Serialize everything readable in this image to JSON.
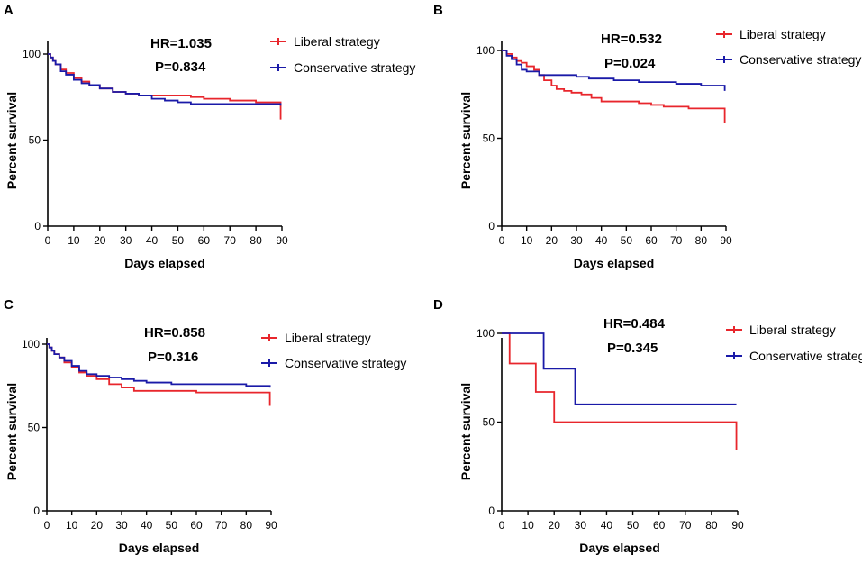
{
  "colors": {
    "liberal": "#e8262c",
    "conservative": "#1a1aa8"
  },
  "chart_data": [
    {
      "type": "line",
      "panel": "A",
      "xlabel": "Days elapsed",
      "ylabel": "Percent survival",
      "xlim": [
        0,
        90
      ],
      "ylim": [
        0,
        105
      ],
      "xticks": [
        "0",
        "10",
        "20",
        "30",
        "40",
        "50",
        "60",
        "70",
        "80",
        "90"
      ],
      "yticks": [
        "0",
        "50",
        "100"
      ],
      "hr_text": "HR=1.035",
      "p_text": "P=0.834",
      "legend": [
        "Liberal strategy",
        "Conservative strategy"
      ],
      "series": [
        {
          "name": "Liberal strategy",
          "color": "liberal",
          "points": [
            [
              0,
              100
            ],
            [
              1,
              98
            ],
            [
              2,
              96
            ],
            [
              3,
              94
            ],
            [
              5,
              91
            ],
            [
              7,
              89
            ],
            [
              10,
              86
            ],
            [
              13,
              84
            ],
            [
              16,
              82
            ],
            [
              20,
              80
            ],
            [
              25,
              78
            ],
            [
              30,
              77
            ],
            [
              35,
              76
            ],
            [
              40,
              76
            ],
            [
              45,
              76
            ],
            [
              50,
              76
            ],
            [
              55,
              75
            ],
            [
              60,
              74
            ],
            [
              70,
              73
            ],
            [
              80,
              72
            ],
            [
              89,
              72
            ],
            [
              89.5,
              62
            ]
          ]
        },
        {
          "name": "Conservative strategy",
          "color": "conservative",
          "points": [
            [
              0,
              100
            ],
            [
              1,
              98
            ],
            [
              2,
              96
            ],
            [
              3,
              94
            ],
            [
              5,
              90
            ],
            [
              7,
              88
            ],
            [
              10,
              85
            ],
            [
              13,
              83
            ],
            [
              16,
              82
            ],
            [
              20,
              80
            ],
            [
              25,
              78
            ],
            [
              30,
              77
            ],
            [
              35,
              76
            ],
            [
              40,
              74
            ],
            [
              45,
              73
            ],
            [
              50,
              72
            ],
            [
              55,
              71
            ],
            [
              60,
              71
            ],
            [
              70,
              71
            ],
            [
              80,
              71
            ],
            [
              89,
              71
            ],
            [
              89.5,
              70
            ]
          ]
        }
      ]
    },
    {
      "type": "line",
      "panel": "B",
      "xlabel": "Days elapsed",
      "ylabel": "Percent survival",
      "xlim": [
        0,
        90
      ],
      "ylim": [
        0,
        105
      ],
      "xticks": [
        "0",
        "10",
        "20",
        "30",
        "40",
        "50",
        "60",
        "70",
        "80",
        "90"
      ],
      "yticks": [
        "0",
        "50",
        "100"
      ],
      "hr_text": "HR=0.532",
      "p_text": "P=0.024",
      "legend": [
        "Liberal strategy",
        "Conservative strategy"
      ],
      "series": [
        {
          "name": "Liberal strategy",
          "color": "liberal",
          "points": [
            [
              0,
              100
            ],
            [
              2,
              98
            ],
            [
              4,
              96
            ],
            [
              6,
              94
            ],
            [
              8,
              93
            ],
            [
              10,
              91
            ],
            [
              13,
              89
            ],
            [
              15,
              86
            ],
            [
              17,
              83
            ],
            [
              20,
              80
            ],
            [
              22,
              78
            ],
            [
              25,
              77
            ],
            [
              28,
              76
            ],
            [
              32,
              75
            ],
            [
              36,
              73
            ],
            [
              40,
              71
            ],
            [
              45,
              71
            ],
            [
              50,
              71
            ],
            [
              55,
              70
            ],
            [
              60,
              69
            ],
            [
              65,
              68
            ],
            [
              70,
              68
            ],
            [
              75,
              67
            ],
            [
              80,
              67
            ],
            [
              89,
              67
            ],
            [
              89.5,
              59
            ]
          ]
        },
        {
          "name": "Conservative strategy",
          "color": "conservative",
          "points": [
            [
              0,
              100
            ],
            [
              2,
              97
            ],
            [
              4,
              95
            ],
            [
              6,
              92
            ],
            [
              8,
              89
            ],
            [
              10,
              88
            ],
            [
              13,
              88
            ],
            [
              15,
              86
            ],
            [
              20,
              86
            ],
            [
              25,
              86
            ],
            [
              30,
              85
            ],
            [
              35,
              84
            ],
            [
              40,
              84
            ],
            [
              45,
              83
            ],
            [
              50,
              83
            ],
            [
              55,
              82
            ],
            [
              60,
              82
            ],
            [
              65,
              82
            ],
            [
              70,
              81
            ],
            [
              75,
              81
            ],
            [
              80,
              80
            ],
            [
              89,
              80
            ],
            [
              89.5,
              77
            ]
          ]
        }
      ]
    },
    {
      "type": "line",
      "panel": "C",
      "xlabel": "Days elapsed",
      "ylabel": "Percent survival",
      "xlim": [
        0,
        90
      ],
      "ylim": [
        0,
        105
      ],
      "xticks": [
        "0",
        "10",
        "20",
        "30",
        "40",
        "50",
        "60",
        "70",
        "80",
        "90"
      ],
      "yticks": [
        "0",
        "50",
        "100"
      ],
      "hr_text": "HR=0.858",
      "p_text": "P=0.316",
      "legend": [
        "Liberal strategy",
        "Conservative strategy"
      ],
      "series": [
        {
          "name": "Liberal strategy",
          "color": "liberal",
          "points": [
            [
              0,
              100
            ],
            [
              1,
              98
            ],
            [
              2,
              96
            ],
            [
              3,
              94
            ],
            [
              5,
              92
            ],
            [
              7,
              89
            ],
            [
              10,
              86
            ],
            [
              13,
              83
            ],
            [
              16,
              81
            ],
            [
              20,
              79
            ],
            [
              25,
              76
            ],
            [
              30,
              74
            ],
            [
              35,
              72
            ],
            [
              40,
              72
            ],
            [
              50,
              72
            ],
            [
              60,
              71
            ],
            [
              70,
              71
            ],
            [
              80,
              71
            ],
            [
              89,
              71
            ],
            [
              89.5,
              63
            ]
          ]
        },
        {
          "name": "Conservative strategy",
          "color": "conservative",
          "points": [
            [
              0,
              100
            ],
            [
              1,
              98
            ],
            [
              2,
              96
            ],
            [
              3,
              94
            ],
            [
              5,
              92
            ],
            [
              7,
              90
            ],
            [
              10,
              87
            ],
            [
              13,
              84
            ],
            [
              16,
              82
            ],
            [
              20,
              81
            ],
            [
              25,
              80
            ],
            [
              30,
              79
            ],
            [
              35,
              78
            ],
            [
              40,
              77
            ],
            [
              50,
              76
            ],
            [
              60,
              76
            ],
            [
              70,
              76
            ],
            [
              80,
              75
            ],
            [
              89,
              75
            ],
            [
              89.5,
              74
            ]
          ]
        }
      ]
    },
    {
      "type": "line",
      "panel": "D",
      "xlabel": "Days elapsed",
      "ylabel": "Percent survival",
      "xlim": [
        0,
        90
      ],
      "ylim": [
        0,
        105
      ],
      "xticks": [
        "0",
        "10",
        "20",
        "30",
        "40",
        "50",
        "60",
        "70",
        "80",
        "90"
      ],
      "yticks": [
        "0",
        "50",
        "100"
      ],
      "hr_text": "HR=0.484",
      "p_text": "P=0.345",
      "legend": [
        "Liberal strategy",
        "Conservative  strategy"
      ],
      "series": [
        {
          "name": "Liberal strategy",
          "color": "liberal",
          "points": [
            [
              0,
              100
            ],
            [
              3,
              100
            ],
            [
              3,
              83
            ],
            [
              13,
              83
            ],
            [
              13,
              67
            ],
            [
              20,
              67
            ],
            [
              20,
              50
            ],
            [
              89,
              50
            ],
            [
              89.5,
              34
            ]
          ]
        },
        {
          "name": "Conservative strategy",
          "color": "conservative",
          "points": [
            [
              0,
              100
            ],
            [
              16,
              100
            ],
            [
              16,
              80
            ],
            [
              28,
              80
            ],
            [
              28,
              60
            ],
            [
              89.5,
              60
            ]
          ]
        }
      ]
    }
  ]
}
